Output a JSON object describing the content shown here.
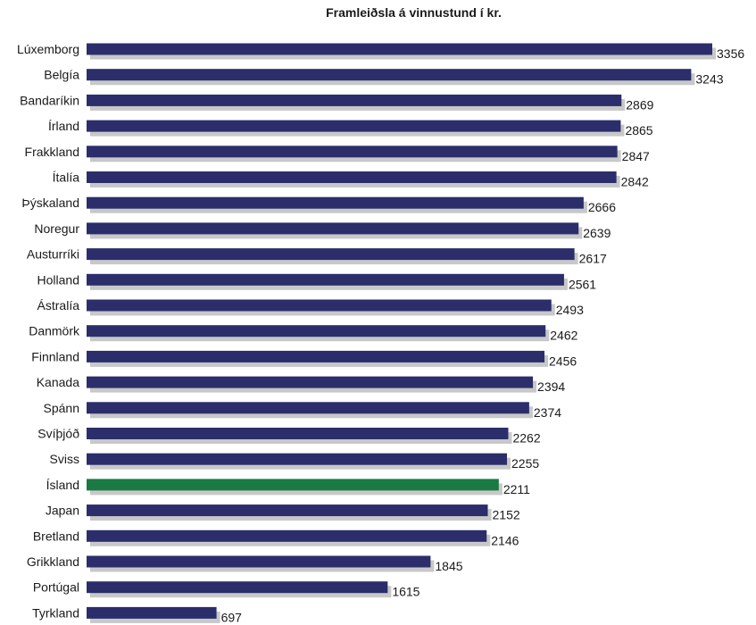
{
  "chart_data": {
    "type": "bar",
    "orientation": "horizontal",
    "title": "Framleiðsla á vinnustund í kr.",
    "xlabel": "",
    "ylabel": "",
    "xlim": [
      0,
      3356
    ],
    "grid": false,
    "categories": [
      "Lúxemborg",
      "Belgía",
      "Bandaríkin",
      "Írland",
      "Frakkland",
      "Ítalía",
      "Þýskaland",
      "Noregur",
      "Austurríki",
      "Holland",
      "Ástralía",
      "Danmörk",
      "Finnland",
      "Kanada",
      "Spánn",
      "Svíþjóð",
      "Sviss",
      "Ísland",
      "Japan",
      "Bretland",
      "Grikkland",
      "Portúgal",
      "Tyrkland"
    ],
    "values": [
      3356,
      3243,
      2869,
      2865,
      2847,
      2842,
      2666,
      2639,
      2617,
      2561,
      2493,
      2462,
      2456,
      2394,
      2374,
      2262,
      2255,
      2211,
      2152,
      2146,
      1845,
      1615,
      697
    ],
    "highlight": "Ísland",
    "colors": {
      "bar": "#2b2e6b",
      "highlight": "#1a7a43",
      "shadow": "#c8c8c8"
    }
  }
}
